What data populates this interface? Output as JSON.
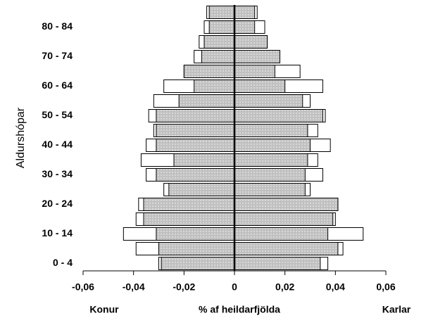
{
  "chart_data": {
    "type": "pyramid",
    "ylabel": "Aldurshópar",
    "xlabel": "% af heildarfjölda",
    "annotations": [
      "Konur",
      "Karlar"
    ],
    "categories": [
      "0 - 4",
      null,
      "10 - 14",
      null,
      "20 - 24",
      null,
      "30 - 34",
      null,
      "40 - 44",
      null,
      "50 - 54",
      null,
      "60 - 64",
      null,
      "70 - 74",
      null,
      "80 - 84",
      null
    ],
    "series": [
      {
        "color": "#ffffff",
        "values": [
          -0.03,
          -0.039,
          -0.044,
          -0.039,
          -0.038,
          -0.028,
          -0.035,
          -0.037,
          -0.035,
          -0.032,
          -0.034,
          -0.032,
          -0.028,
          -0.02,
          -0.016,
          -0.014,
          -0.012,
          -0.011
        ]
      },
      {
        "color": "#c0c0c0",
        "values": [
          -0.029,
          -0.03,
          -0.031,
          -0.036,
          -0.036,
          -0.026,
          -0.031,
          -0.024,
          -0.031,
          -0.031,
          -0.031,
          -0.022,
          -0.016,
          -0.02,
          -0.013,
          -0.012,
          -0.01,
          -0.01
        ]
      },
      {
        "color": "#ffffff",
        "values": [
          0.037,
          0.043,
          0.051,
          0.04,
          0.041,
          0.03,
          0.035,
          0.033,
          0.038,
          0.033,
          0.036,
          0.03,
          0.035,
          0.026,
          0.018,
          0.013,
          0.012,
          0.009
        ]
      },
      {
        "color": "#c0c0c0",
        "values": [
          0.034,
          0.041,
          0.037,
          0.039,
          0.041,
          0.028,
          0.028,
          0.029,
          0.03,
          0.029,
          0.035,
          0.027,
          0.02,
          0.016,
          0.018,
          0.013,
          0.008,
          0.008
        ]
      }
    ],
    "xlim": [
      -0.06,
      0.06
    ],
    "xticks": [
      {
        "value": -0.06,
        "label": "-0,06"
      },
      {
        "value": -0.04,
        "label": "-0,04"
      },
      {
        "value": -0.02,
        "label": "-0,02"
      },
      0,
      {
        "value": 0.02,
        "label": "0,02"
      },
      {
        "value": 0.04,
        "label": "0,04"
      },
      {
        "value": 0.06,
        "label": "0,06"
      }
    ]
  }
}
